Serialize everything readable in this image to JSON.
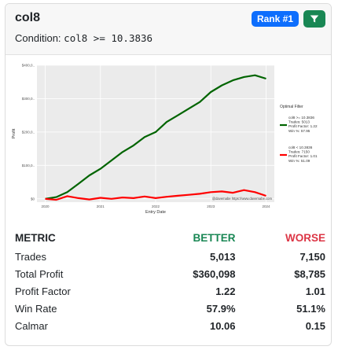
{
  "card": {
    "title": "col8",
    "condition_label": "Condition:",
    "condition_expr": "col8 >= 10.3836",
    "rank_badge": "Rank #1",
    "filter_icon": "filter-icon",
    "colors": {
      "rank": "#0d6efd",
      "filter": "#198754",
      "better": "#198754",
      "worse": "#dc3545"
    }
  },
  "chart_data": {
    "type": "line",
    "title": "",
    "xlabel": "Entry Date",
    "ylabel": "Profit",
    "x_ticks": [
      "2020",
      "2021",
      "2022",
      "2023",
      "2024"
    ],
    "y_ticks": [
      "$0",
      "$100,0..",
      "$200,0..",
      "$300,0..",
      "$400,0.."
    ],
    "ylim": [
      -10000,
      400000
    ],
    "grid": true,
    "legend_title": "Optimal Filter",
    "legend_placement": "right",
    "watermark": "@davemabe https://www.davemabe.com",
    "series": [
      {
        "name": "col8 >= 10.3836 Trades: 5013 Profit Factor: 1.22 Win %: 57.95",
        "color": "#006400",
        "x": [
          2020.0,
          2020.2,
          2020.4,
          2020.6,
          2020.8,
          2021.0,
          2021.2,
          2021.4,
          2021.6,
          2021.8,
          2022.0,
          2022.2,
          2022.4,
          2022.6,
          2022.8,
          2023.0,
          2023.2,
          2023.4,
          2023.6,
          2023.8,
          2024.0
        ],
        "values": [
          0,
          5000,
          20000,
          45000,
          70000,
          90000,
          115000,
          140000,
          160000,
          185000,
          200000,
          230000,
          250000,
          270000,
          290000,
          320000,
          340000,
          355000,
          365000,
          370000,
          360000
        ]
      },
      {
        "name": "col8 < 10.3836 Trades: 7150 Profit Factor: 1.01 Win %: 51.09",
        "color": "#ff0000",
        "x": [
          2020.0,
          2020.2,
          2020.4,
          2020.6,
          2020.8,
          2021.0,
          2021.2,
          2021.4,
          2021.6,
          2021.8,
          2022.0,
          2022.2,
          2022.4,
          2022.6,
          2022.8,
          2023.0,
          2023.2,
          2023.4,
          2023.6,
          2023.8,
          2024.0
        ],
        "values": [
          0,
          -3000,
          8000,
          2000,
          -2000,
          3000,
          0,
          4000,
          2000,
          7000,
          2000,
          6000,
          9000,
          12000,
          15000,
          20000,
          22000,
          18000,
          26000,
          20000,
          8785
        ]
      }
    ]
  },
  "table": {
    "headers": {
      "metric": "METRIC",
      "better": "BETTER",
      "worse": "WORSE"
    },
    "rows": [
      {
        "metric": "Trades",
        "better": "5,013",
        "worse": "7,150"
      },
      {
        "metric": "Total Profit",
        "better": "$360,098",
        "worse": "$8,785"
      },
      {
        "metric": "Profit Factor",
        "better": "1.22",
        "worse": "1.01"
      },
      {
        "metric": "Win Rate",
        "better": "57.9%",
        "worse": "51.1%"
      },
      {
        "metric": "Calmar",
        "better": "10.06",
        "worse": "0.15"
      }
    ]
  }
}
